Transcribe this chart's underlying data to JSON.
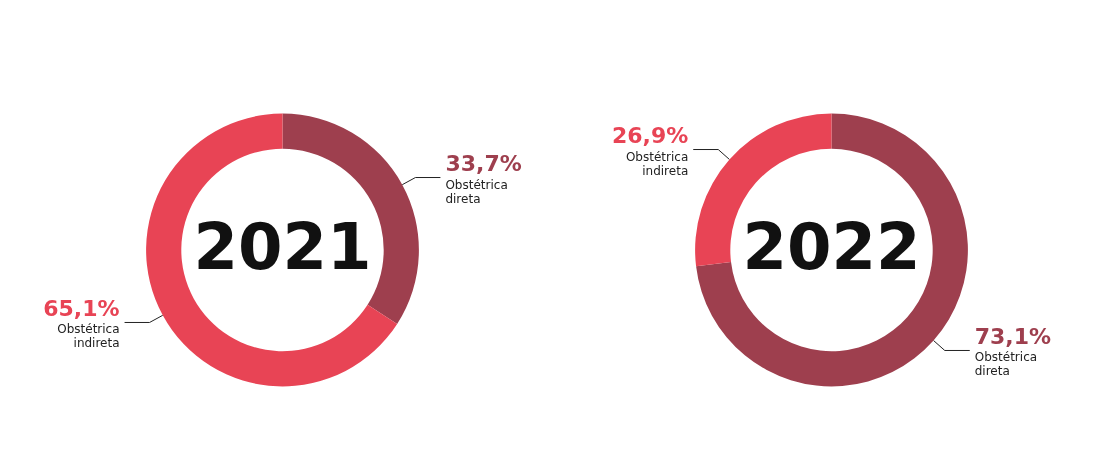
{
  "chart_data": [
    {
      "type": "donut",
      "title": "2021",
      "categories": [
        "Obstétrica direta",
        "Obstétrica indireta"
      ],
      "values": [
        33.7,
        65.1
      ],
      "colors": [
        "#9e3f4e",
        "#e84455"
      ],
      "value_labels": [
        "33,7%",
        "65,1%"
      ]
    },
    {
      "type": "donut",
      "title": "2022",
      "categories": [
        "Obstétrica direta",
        "Obstétrica indireta"
      ],
      "values": [
        73.1,
        26.9
      ],
      "colors": [
        "#9e3f4e",
        "#e84455"
      ],
      "value_labels": [
        "73,1%",
        "26,9%"
      ]
    }
  ]
}
